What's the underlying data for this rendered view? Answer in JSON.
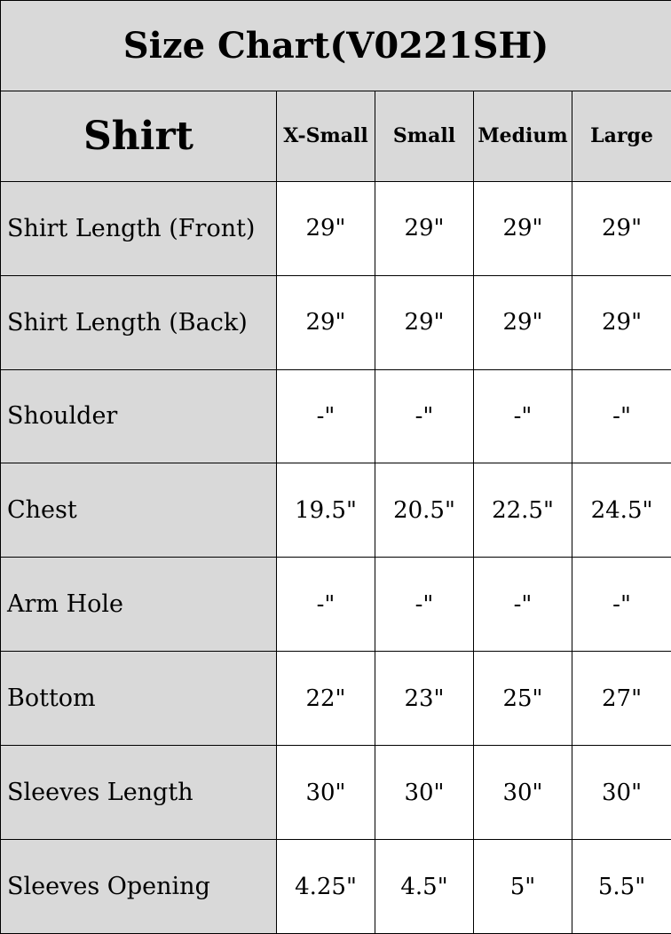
{
  "title": "Size Chart(V0221SH)",
  "header": {
    "section": "Shirt",
    "sizes": [
      "X-Small",
      "Small",
      "Medium",
      "Large"
    ]
  },
  "rows": [
    {
      "label": "Shirt Length (Front)",
      "values": [
        "29\"",
        "29\"",
        "29\"",
        "29\""
      ]
    },
    {
      "label": "Shirt Length (Back)",
      "values": [
        "29\"",
        "29\"",
        "29\"",
        "29\""
      ]
    },
    {
      "label": "Shoulder",
      "values": [
        "-\"",
        "-\"",
        "-\"",
        "-\""
      ]
    },
    {
      "label": "Chest",
      "values": [
        "19.5\"",
        "20.5\"",
        "22.5\"",
        "24.5\""
      ]
    },
    {
      "label": "Arm Hole",
      "values": [
        "-\"",
        "-\"",
        "-\"",
        "-\""
      ]
    },
    {
      "label": "Bottom",
      "values": [
        "22\"",
        "23\"",
        "25\"",
        "27\""
      ]
    },
    {
      "label": "Sleeves Length",
      "values": [
        "30\"",
        "30\"",
        "30\"",
        "30\""
      ]
    },
    {
      "label": "Sleeves Opening",
      "values": [
        "4.25\"",
        "4.5\"",
        "5\"",
        "5.5\""
      ]
    }
  ],
  "colors": {
    "header_bg": "#d9d9d9",
    "cell_bg": "#ffffff",
    "border": "#000000"
  }
}
